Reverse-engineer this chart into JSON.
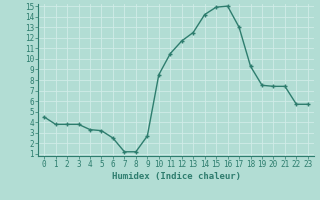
{
  "title": "",
  "xlabel": "Humidex (Indice chaleur)",
  "ylabel": "",
  "x": [
    0,
    1,
    2,
    3,
    4,
    5,
    6,
    7,
    8,
    9,
    10,
    11,
    12,
    13,
    14,
    15,
    16,
    17,
    18,
    19,
    20,
    21,
    22,
    23
  ],
  "y": [
    4.5,
    3.8,
    3.8,
    3.8,
    3.3,
    3.2,
    2.5,
    1.2,
    1.2,
    2.7,
    8.5,
    10.5,
    11.7,
    12.5,
    14.2,
    14.9,
    15.0,
    13.0,
    9.3,
    7.5,
    7.4,
    7.4,
    5.7,
    5.7
  ],
  "line_color": "#2e7d6e",
  "marker": "+",
  "marker_color": "#2e7d6e",
  "bg_color": "#b2ddd4",
  "grid_color": "#d0ece8",
  "axis_label_color": "#2e7d6e",
  "tick_label_color": "#2e7d6e",
  "ylim": [
    1,
    15
  ],
  "xlim": [
    -0.5,
    23.5
  ],
  "yticks": [
    1,
    2,
    3,
    4,
    5,
    6,
    7,
    8,
    9,
    10,
    11,
    12,
    13,
    14,
    15
  ],
  "xticks": [
    0,
    1,
    2,
    3,
    4,
    5,
    6,
    7,
    8,
    9,
    10,
    11,
    12,
    13,
    14,
    15,
    16,
    17,
    18,
    19,
    20,
    21,
    22,
    23
  ],
  "xlabel_fontsize": 6.5,
  "tick_fontsize": 5.5,
  "line_width": 1.0,
  "marker_size": 3.5
}
